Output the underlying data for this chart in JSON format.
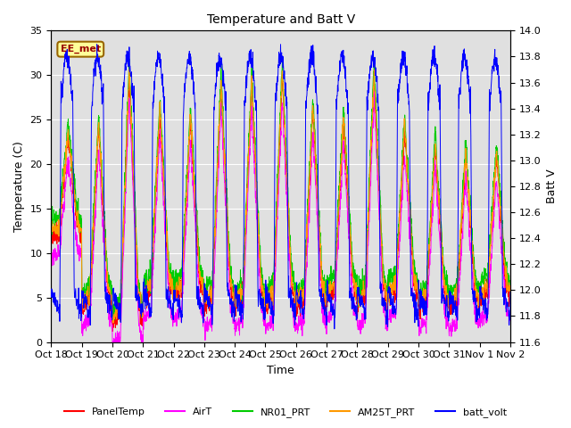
{
  "title": "Temperature and Batt V",
  "xlabel": "Time",
  "ylabel_left": "Temperature (C)",
  "ylabel_right": "Batt V",
  "annotation": "EE_met",
  "ylim_left": [
    0,
    35
  ],
  "ylim_right": [
    11.6,
    14.0
  ],
  "xtick_labels": [
    "Oct 18",
    "Oct 19",
    "Oct 20",
    "Oct 21",
    "Oct 22",
    "Oct 23",
    "Oct 24",
    "Oct 25",
    "Oct 26",
    "Oct 27",
    "Oct 28",
    "Oct 29",
    "Oct 30",
    "Oct 31",
    "Nov 1",
    "Nov 2"
  ],
  "series_colors": {
    "PanelTemp": "#ff0000",
    "AirT": "#ff00ff",
    "NR01_PRT": "#00cc00",
    "AM25T_PRT": "#ff9900",
    "batt_volt": "#0000ff"
  },
  "legend_labels": [
    "PanelTemp",
    "AirT",
    "NR01_PRT",
    "AM25T_PRT",
    "batt_volt"
  ],
  "background_color": "#ffffff",
  "plot_bg_color": "#e0e0e0",
  "grid_color": "#ffffff",
  "n_days": 15,
  "pts_per_day": 144,
  "yticks_left": [
    0,
    5,
    10,
    15,
    20,
    25,
    30,
    35
  ],
  "yticks_right": [
    11.6,
    11.8,
    12.0,
    12.2,
    12.4,
    12.6,
    12.8,
    13.0,
    13.2,
    13.4,
    13.6,
    13.8,
    14.0
  ]
}
